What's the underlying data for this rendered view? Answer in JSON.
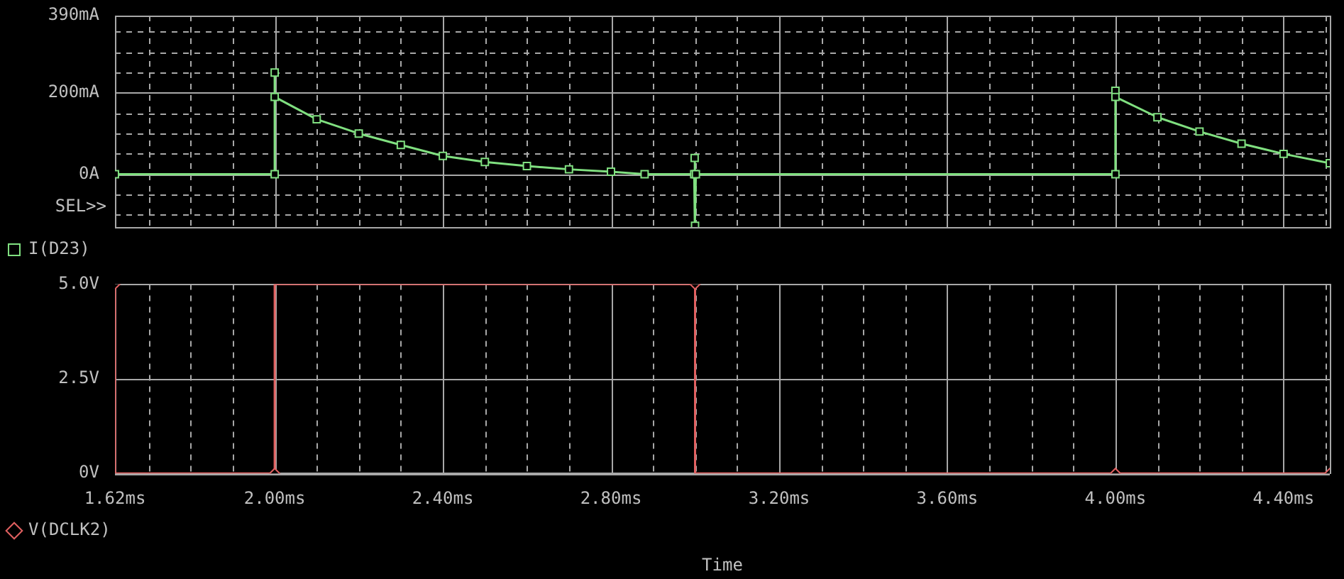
{
  "chart_data": [
    {
      "type": "line",
      "annotations": [
        "SEL>>"
      ],
      "marker": "square",
      "grid": true,
      "legend": "bottom left",
      "tick_labels": "y",
      "xlim": [
        1.62,
        4.51
      ],
      "xticks": [
        {
          "value": 1.62,
          "label": null
        },
        {
          "value": 1.7,
          "label": null
        },
        {
          "value": 1.8,
          "label": null
        },
        {
          "value": 1.9,
          "label": null
        },
        {
          "value": 2.0,
          "label": null
        },
        {
          "value": 2.1,
          "label": null
        },
        {
          "value": 2.2,
          "label": null
        },
        {
          "value": 2.3,
          "label": null
        },
        {
          "value": 2.4,
          "label": null
        },
        {
          "value": 2.5,
          "label": null
        },
        {
          "value": 2.6,
          "label": null
        },
        {
          "value": 2.7,
          "label": null
        },
        {
          "value": 2.8,
          "label": null
        },
        {
          "value": 2.9,
          "label": null
        },
        {
          "value": 3.0,
          "label": null
        },
        {
          "value": 3.1,
          "label": null
        },
        {
          "value": 3.2,
          "label": null
        },
        {
          "value": 3.3,
          "label": null
        },
        {
          "value": 3.4,
          "label": null
        },
        {
          "value": 3.5,
          "label": null
        },
        {
          "value": 3.6,
          "label": null
        },
        {
          "value": 3.7,
          "label": null
        },
        {
          "value": 3.8,
          "label": null
        },
        {
          "value": 3.9,
          "label": null
        },
        {
          "value": 4.0,
          "label": null
        },
        {
          "value": 4.1,
          "label": null
        },
        {
          "value": 4.2,
          "label": null
        },
        {
          "value": 4.3,
          "label": null
        },
        {
          "value": 4.4,
          "label": null
        },
        {
          "value": 4.5,
          "label": null
        }
      ],
      "ylim": [
        -130,
        390
      ],
      "yticks": [
        {
          "value": -100,
          "label": null
        },
        {
          "value": -50,
          "label": null
        },
        {
          "value": 0,
          "label": "0A"
        },
        {
          "value": 50,
          "label": null
        },
        {
          "value": 100,
          "label": null
        },
        {
          "value": 150,
          "label": null
        },
        {
          "value": 200,
          "label": "200mA"
        },
        {
          "value": 250,
          "label": null
        },
        {
          "value": 300,
          "label": null
        },
        {
          "value": 350,
          "label": null
        },
        {
          "value": 390,
          "label": "390mA"
        }
      ],
      "series": [
        {
          "name": "I(D23)",
          "color": "#80e080",
          "x": [
            1.62,
            2.0,
            2.0,
            2.0,
            2.1,
            2.2,
            2.3,
            2.4,
            2.5,
            2.6,
            2.7,
            2.8,
            2.88,
            2.998,
            2.999,
            3.0,
            3.002,
            4.0,
            4.0,
            4.0,
            4.1,
            4.2,
            4.3,
            4.4,
            4.51
          ],
          "values": [
            0,
            0,
            250,
            190,
            135,
            100,
            72,
            45,
            30,
            20,
            12,
            6,
            0,
            0,
            40,
            -127,
            0,
            0,
            205,
            190,
            140,
            105,
            75,
            50,
            27
          ]
        }
      ]
    },
    {
      "type": "step",
      "marker": "diamond",
      "grid": true,
      "legend": "bottom left",
      "xlabel": "Time",
      "xlim": [
        1.62,
        4.51
      ],
      "xticks": [
        {
          "value": 1.62,
          "label": "1.62ms"
        },
        {
          "value": 1.7,
          "label": null
        },
        {
          "value": 1.8,
          "label": null
        },
        {
          "value": 1.9,
          "label": null
        },
        {
          "value": 2.0,
          "label": "2.00ms"
        },
        {
          "value": 2.1,
          "label": null
        },
        {
          "value": 2.2,
          "label": null
        },
        {
          "value": 2.3,
          "label": null
        },
        {
          "value": 2.4,
          "label": "2.40ms"
        },
        {
          "value": 2.5,
          "label": null
        },
        {
          "value": 2.6,
          "label": null
        },
        {
          "value": 2.7,
          "label": null
        },
        {
          "value": 2.8,
          "label": "2.80ms"
        },
        {
          "value": 2.9,
          "label": null
        },
        {
          "value": 3.0,
          "label": null
        },
        {
          "value": 3.1,
          "label": null
        },
        {
          "value": 3.2,
          "label": "3.20ms"
        },
        {
          "value": 3.3,
          "label": null
        },
        {
          "value": 3.4,
          "label": null
        },
        {
          "value": 3.5,
          "label": null
        },
        {
          "value": 3.6,
          "label": "3.60ms"
        },
        {
          "value": 3.7,
          "label": null
        },
        {
          "value": 3.8,
          "label": null
        },
        {
          "value": 3.9,
          "label": null
        },
        {
          "value": 4.0,
          "label": "4.00ms"
        },
        {
          "value": 4.1,
          "label": null
        },
        {
          "value": 4.2,
          "label": null
        },
        {
          "value": 4.3,
          "label": null
        },
        {
          "value": 4.4,
          "label": "4.40ms"
        },
        {
          "value": 4.5,
          "label": null
        }
      ],
      "ylim": [
        0,
        5
      ],
      "yticks": [
        {
          "value": 0,
          "label": "0V"
        },
        {
          "value": 2.5,
          "label": "2.5V"
        },
        {
          "value": 5,
          "label": "5.0V"
        }
      ],
      "series": [
        {
          "name": "V(DCLK2)",
          "color": "#e06060",
          "x": [
            1.62,
            2.0,
            3.0,
            4.0,
            4.51
          ],
          "values": [
            5,
            0,
            5,
            0,
            0
          ]
        }
      ]
    }
  ]
}
